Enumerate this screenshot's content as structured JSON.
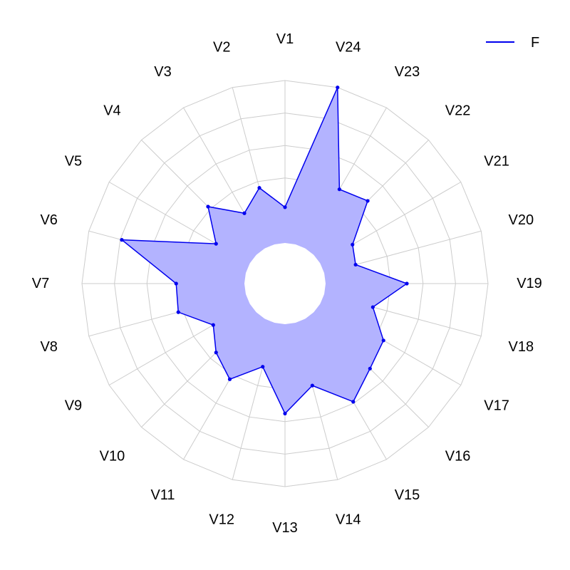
{
  "chart_data": {
    "type": "radar",
    "categories": [
      "V1",
      "V2",
      "V3",
      "V4",
      "V5",
      "V6",
      "V7",
      "V8",
      "V9",
      "V10",
      "V11",
      "V12",
      "V13",
      "V14",
      "V15",
      "V16",
      "V17",
      "V18",
      "V19",
      "V20",
      "V21",
      "V22",
      "V23",
      "V24"
    ],
    "series": [
      {
        "name": "F",
        "values": [
          0.22,
          0.36,
          0.25,
          0.42,
          0.24,
          0.79,
          0.42,
          0.43,
          0.26,
          0.35,
          0.43,
          0.28,
          0.55,
          0.4,
          0.59,
          0.49,
          0.45,
          0.31,
          0.5,
          0.2,
          0.23,
          0.47,
          0.42,
          1.0
        ],
        "color": "#0000ee",
        "fill": "#b3b3ff"
      }
    ],
    "rlim": [
      0,
      1
    ],
    "grid_rings": 5,
    "center_hole": 0.2,
    "start_angle": "top",
    "direction": "counterclockwise",
    "grid": true,
    "legend": "top-right",
    "grid_color": "#cccccc"
  }
}
